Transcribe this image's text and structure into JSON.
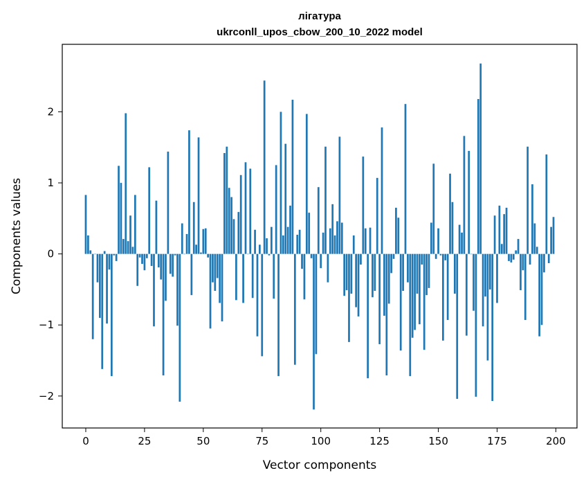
{
  "chart_data": {
    "type": "bar",
    "title_line1": "лігатура",
    "title_line2": "ukrconll_upos_cbow_200_10_2022 model",
    "xlabel": "Vector components",
    "ylabel": "Components values",
    "xlim": [
      -10,
      209
    ],
    "ylim": [
      -2.45,
      2.95
    ],
    "xticks": [
      0,
      25,
      50,
      75,
      100,
      125,
      150,
      175,
      200
    ],
    "yticks": [
      -2,
      -1,
      0,
      1,
      2
    ],
    "ytick_labels": [
      "−2",
      "−1",
      "0",
      "1",
      "2"
    ],
    "bar_color": "#1f77b4",
    "grid": false,
    "values": [
      0.83,
      0.26,
      0.05,
      -1.2,
      0.0,
      -0.4,
      -0.9,
      -1.62,
      0.04,
      -0.98,
      -0.22,
      -1.72,
      -0.02,
      -0.1,
      1.24,
      1.0,
      0.21,
      1.98,
      0.18,
      0.54,
      0.1,
      0.83,
      -0.45,
      -0.05,
      -0.14,
      -0.23,
      -0.06,
      1.22,
      -0.17,
      -1.02,
      0.75,
      -0.19,
      -0.36,
      -1.71,
      -0.66,
      1.44,
      -0.28,
      -0.32,
      -0.02,
      -1.01,
      -2.08,
      0.43,
      0.0,
      0.28,
      1.74,
      -0.58,
      0.73,
      0.13,
      1.64,
      0.02,
      0.35,
      0.36,
      -0.05,
      -1.05,
      -0.4,
      -0.52,
      -0.34,
      -0.69,
      -0.95,
      1.42,
      1.51,
      0.93,
      0.8,
      0.49,
      -0.65,
      0.59,
      1.11,
      -0.69,
      1.29,
      0.0,
      1.2,
      -0.62,
      0.34,
      -1.16,
      0.13,
      -1.44,
      2.44,
      0.22,
      -0.02,
      0.38,
      -0.63,
      1.25,
      -1.72,
      2.0,
      0.26,
      1.55,
      0.38,
      0.68,
      2.17,
      -1.56,
      0.27,
      0.34,
      -0.21,
      -0.64,
      1.97,
      0.58,
      -0.06,
      -2.19,
      -1.41,
      0.94,
      -0.2,
      0.3,
      1.51,
      -0.4,
      0.36,
      0.7,
      0.26,
      0.46,
      1.65,
      0.44,
      -0.59,
      -0.51,
      -1.24,
      -0.56,
      0.26,
      -0.75,
      -0.88,
      -0.15,
      1.37,
      0.36,
      -1.75,
      0.37,
      -0.61,
      -0.52,
      1.07,
      -1.27,
      1.78,
      -0.87,
      -1.71,
      -0.7,
      -0.27,
      -0.07,
      0.65,
      0.51,
      -1.36,
      -0.52,
      2.11,
      -0.4,
      -1.72,
      -1.18,
      -1.07,
      -0.56,
      -0.99,
      -0.15,
      -1.35,
      -0.58,
      -0.48,
      0.44,
      1.27,
      -0.07,
      0.36,
      -0.02,
      -1.22,
      -0.09,
      -0.93,
      1.13,
      0.73,
      -0.56,
      -2.04,
      0.41,
      0.3,
      1.66,
      -1.15,
      1.45,
      0.0,
      -0.8,
      -2.01,
      2.18,
      2.68,
      -1.02,
      -0.6,
      -1.5,
      -0.5,
      -2.07,
      0.54,
      -0.69,
      0.68,
      0.14,
      0.56,
      0.65,
      -0.1,
      -0.12,
      -0.08,
      0.05,
      0.21,
      -0.51,
      -0.23,
      -0.93,
      1.51,
      -0.15,
      0.98,
      0.43,
      0.1,
      -1.16,
      -1.0,
      -0.26,
      1.4,
      -0.13,
      0.38,
      0.52
    ]
  }
}
